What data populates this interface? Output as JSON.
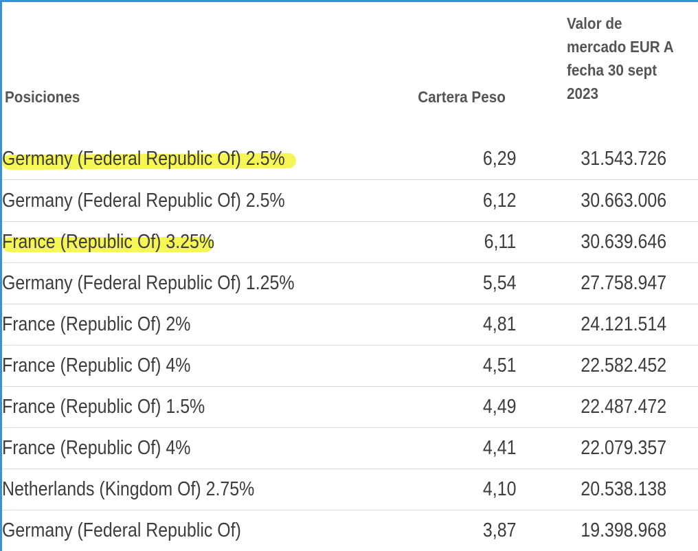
{
  "table": {
    "headers": {
      "position": "Posiciones",
      "weight": "Cartera Peso",
      "market_value": "Valor de mercado EUR A fecha 30 sept 2023"
    },
    "rows": [
      {
        "name": "Germany (Federal Republic Of) 2.5%",
        "weight": "6,29",
        "value": "31.543.726",
        "highlighted": true
      },
      {
        "name": "Germany (Federal Republic Of) 2.5%",
        "weight": "6,12",
        "value": "30.663.006",
        "highlighted": false
      },
      {
        "name": "France (Republic Of) 3.25%",
        "weight": "6,11",
        "value": "30.639.646",
        "highlighted": true
      },
      {
        "name": "Germany (Federal Republic Of) 1.25%",
        "weight": "5,54",
        "value": "27.758.947",
        "highlighted": false
      },
      {
        "name": "France (Republic Of) 2%",
        "weight": "4,81",
        "value": "24.121.514",
        "highlighted": false
      },
      {
        "name": "France (Republic Of) 4%",
        "weight": "4,51",
        "value": "22.582.452",
        "highlighted": false
      },
      {
        "name": "France (Republic Of) 1.5%",
        "weight": "4,49",
        "value": "22.487.472",
        "highlighted": false
      },
      {
        "name": "France (Republic Of) 4%",
        "weight": "4,41",
        "value": "22.079.357",
        "highlighted": false
      },
      {
        "name": "Netherlands (Kingdom Of) 2.75%",
        "weight": "4,10",
        "value": "20.538.138",
        "highlighted": false
      },
      {
        "name": "Germany (Federal Republic Of)",
        "weight": "3,87",
        "value": "19.398.968",
        "highlighted": false
      }
    ]
  },
  "colors": {
    "highlight": "#f4f43a",
    "frame_accent": "#3a8fd9",
    "row_divider": "#d9d9d9",
    "text": "#3d3d3d"
  }
}
